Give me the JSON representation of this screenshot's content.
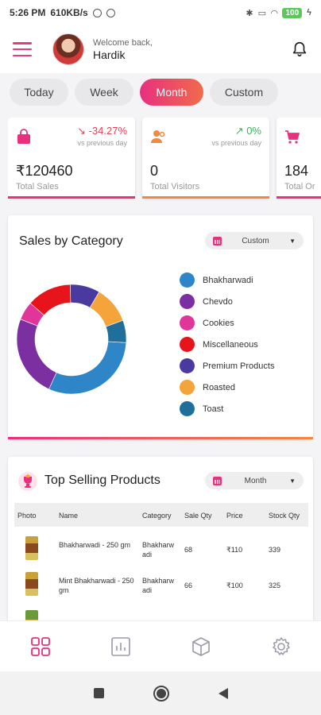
{
  "status_bar": {
    "time": "5:26 PM",
    "speed": "610KB/s",
    "battery": "100"
  },
  "header": {
    "welcome": "Welcome back,",
    "user_name": "Hardik"
  },
  "tabs": [
    {
      "label": "Today",
      "active": false
    },
    {
      "label": "Week",
      "active": false
    },
    {
      "label": "Month",
      "active": true
    },
    {
      "label": "Custom",
      "active": false
    }
  ],
  "kpis": [
    {
      "change": "-34.27%",
      "direction": "down",
      "vs": "vs previous day",
      "value": "₹120460",
      "label": "Total Sales",
      "icon": "shopping-bag-icon",
      "color": "#e8307f",
      "change_color": "#e0445a"
    },
    {
      "change": "0%",
      "direction": "up",
      "vs": "vs previous day",
      "value": "0",
      "label": "Total Visitors",
      "icon": "users-icon",
      "color": "#f08a40",
      "change_color": "#3ab55a"
    },
    {
      "change": "",
      "direction": "",
      "vs": "",
      "value": "184",
      "label": "Total Or",
      "icon": "cart-icon",
      "color": "#e8307f",
      "change_color": "#e0445a"
    }
  ],
  "sales_by_category": {
    "title": "Sales by Category",
    "dropdown": "Custom"
  },
  "chart_data": {
    "type": "pie",
    "donut": true,
    "categories": [
      "Bhakharwadi",
      "Chevdo",
      "Cookies",
      "Miscellaneous",
      "Premium Products",
      "Roasted",
      "Toast"
    ],
    "values": [
      28,
      22,
      5,
      12,
      8,
      10,
      6
    ],
    "colors": [
      "#2e86c8",
      "#7b2fa0",
      "#e0369a",
      "#e8141c",
      "#4a3aa0",
      "#f4a43a",
      "#1f6f9a"
    ],
    "legend": "right"
  },
  "top_selling": {
    "title": "Top Selling Products",
    "dropdown": "Month",
    "columns": [
      "Photo",
      "Name",
      "Category",
      "Sale Qty",
      "Price",
      "Stock Qty"
    ],
    "rows": [
      {
        "name": "Bhakharwadi - 250 gm",
        "category": "Bhakharw adi",
        "sale_qty": "68",
        "price": "₹110",
        "stock_qty": "339"
      },
      {
        "name": "Mint Bhakharwadi - 250 gm",
        "category": "Bhakharw adi",
        "sale_qty": "66",
        "price": "₹100",
        "stock_qty": "325"
      },
      {
        "name": "",
        "category": "",
        "sale_qty": "",
        "price": "",
        "stock_qty": ""
      }
    ]
  },
  "bottom_nav": [
    {
      "icon": "dashboard-grid-icon",
      "active": true
    },
    {
      "icon": "reports-chart-icon",
      "active": false
    },
    {
      "icon": "products-box-icon",
      "active": false
    },
    {
      "icon": "settings-gear-icon",
      "active": false
    }
  ]
}
